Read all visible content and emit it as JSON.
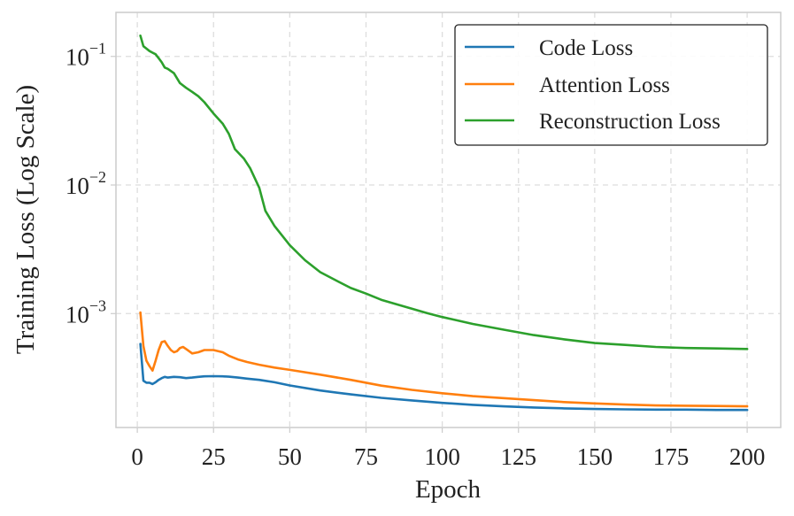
{
  "chart_data": {
    "type": "line",
    "title": "",
    "xlabel": "Epoch",
    "ylabel": "Training Loss (Log Scale)",
    "yscale": "log",
    "xlim": [
      -7,
      211
    ],
    "ylim": [
      0.00013,
      0.22
    ],
    "xticks": [
      0,
      25,
      50,
      75,
      100,
      125,
      150,
      175,
      200
    ],
    "yticks": [
      {
        "value": 0.001,
        "base": "10",
        "exponent": "−3"
      },
      {
        "value": 0.01,
        "base": "10",
        "exponent": "−2"
      },
      {
        "value": 0.1,
        "base": "10",
        "exponent": "−1"
      }
    ],
    "grid": true,
    "legend_position": "top-right",
    "series": [
      {
        "name": "Code Loss",
        "color": "#1f77b4",
        "x": [
          1,
          2,
          3,
          4,
          5,
          6,
          7,
          8,
          9,
          10,
          12,
          14,
          16,
          18,
          20,
          22,
          25,
          28,
          30,
          33,
          36,
          40,
          45,
          50,
          60,
          70,
          80,
          90,
          100,
          110,
          120,
          130,
          140,
          150,
          160,
          170,
          180,
          190,
          200
        ],
        "values": [
          0.00058,
          0.0003,
          0.00029,
          0.00029,
          0.000283,
          0.000292,
          0.000305,
          0.000315,
          0.000322,
          0.000318,
          0.000322,
          0.00032,
          0.000315,
          0.000318,
          0.000322,
          0.000325,
          0.000326,
          0.000325,
          0.000323,
          0.000318,
          0.000312,
          0.000305,
          0.000292,
          0.000276,
          0.000252,
          0.000235,
          0.000221,
          0.000211,
          0.000202,
          0.000195,
          0.00019,
          0.000186,
          0.000183,
          0.000181,
          0.00018,
          0.000179,
          0.000179,
          0.000178,
          0.000178
        ]
      },
      {
        "name": "Attention Loss",
        "color": "#ff7f0e",
        "x": [
          1,
          2,
          3,
          4,
          5,
          6,
          7,
          8,
          9,
          10,
          11,
          12,
          13,
          14,
          15,
          16,
          17,
          18,
          20,
          22,
          25,
          28,
          30,
          33,
          36,
          40,
          45,
          50,
          60,
          70,
          80,
          90,
          100,
          110,
          120,
          130,
          140,
          150,
          160,
          170,
          180,
          190,
          200
        ],
        "values": [
          0.00102,
          0.00056,
          0.00043,
          0.00039,
          0.00036,
          0.00043,
          0.00052,
          0.0006,
          0.00061,
          0.00056,
          0.00052,
          0.0005,
          0.00051,
          0.00054,
          0.00055,
          0.00053,
          0.00051,
          0.00049,
          0.0005,
          0.00052,
          0.00052,
          0.0005,
          0.00047,
          0.00044,
          0.00042,
          0.0004,
          0.00038,
          0.000365,
          0.000335,
          0.000305,
          0.000275,
          0.000255,
          0.00024,
          0.000228,
          0.00022,
          0.000212,
          0.000205,
          0.0002,
          0.000196,
          0.000193,
          0.000192,
          0.000191,
          0.00019
        ]
      },
      {
        "name": "Reconstruction Loss",
        "color": "#2ca02c",
        "x": [
          1,
          2,
          3,
          4,
          5,
          6,
          7,
          8,
          9,
          10,
          12,
          14,
          16,
          18,
          20,
          22,
          25,
          28,
          30,
          32,
          35,
          37,
          40,
          42,
          45,
          50,
          55,
          60,
          65,
          70,
          75,
          80,
          85,
          90,
          95,
          100,
          110,
          120,
          130,
          140,
          150,
          160,
          170,
          180,
          190,
          200
        ],
        "values": [
          0.145,
          0.12,
          0.115,
          0.11,
          0.107,
          0.104,
          0.097,
          0.09,
          0.082,
          0.08,
          0.074,
          0.062,
          0.057,
          0.053,
          0.049,
          0.044,
          0.036,
          0.03,
          0.025,
          0.019,
          0.016,
          0.0135,
          0.0095,
          0.0063,
          0.0048,
          0.0034,
          0.0026,
          0.0021,
          0.00182,
          0.00158,
          0.00143,
          0.00128,
          0.00118,
          0.00109,
          0.00101,
          0.00094,
          0.00083,
          0.00075,
          0.00068,
          0.00063,
          0.00059,
          0.00057,
          0.00055,
          0.00054,
          0.000535,
          0.00053
        ]
      }
    ]
  }
}
